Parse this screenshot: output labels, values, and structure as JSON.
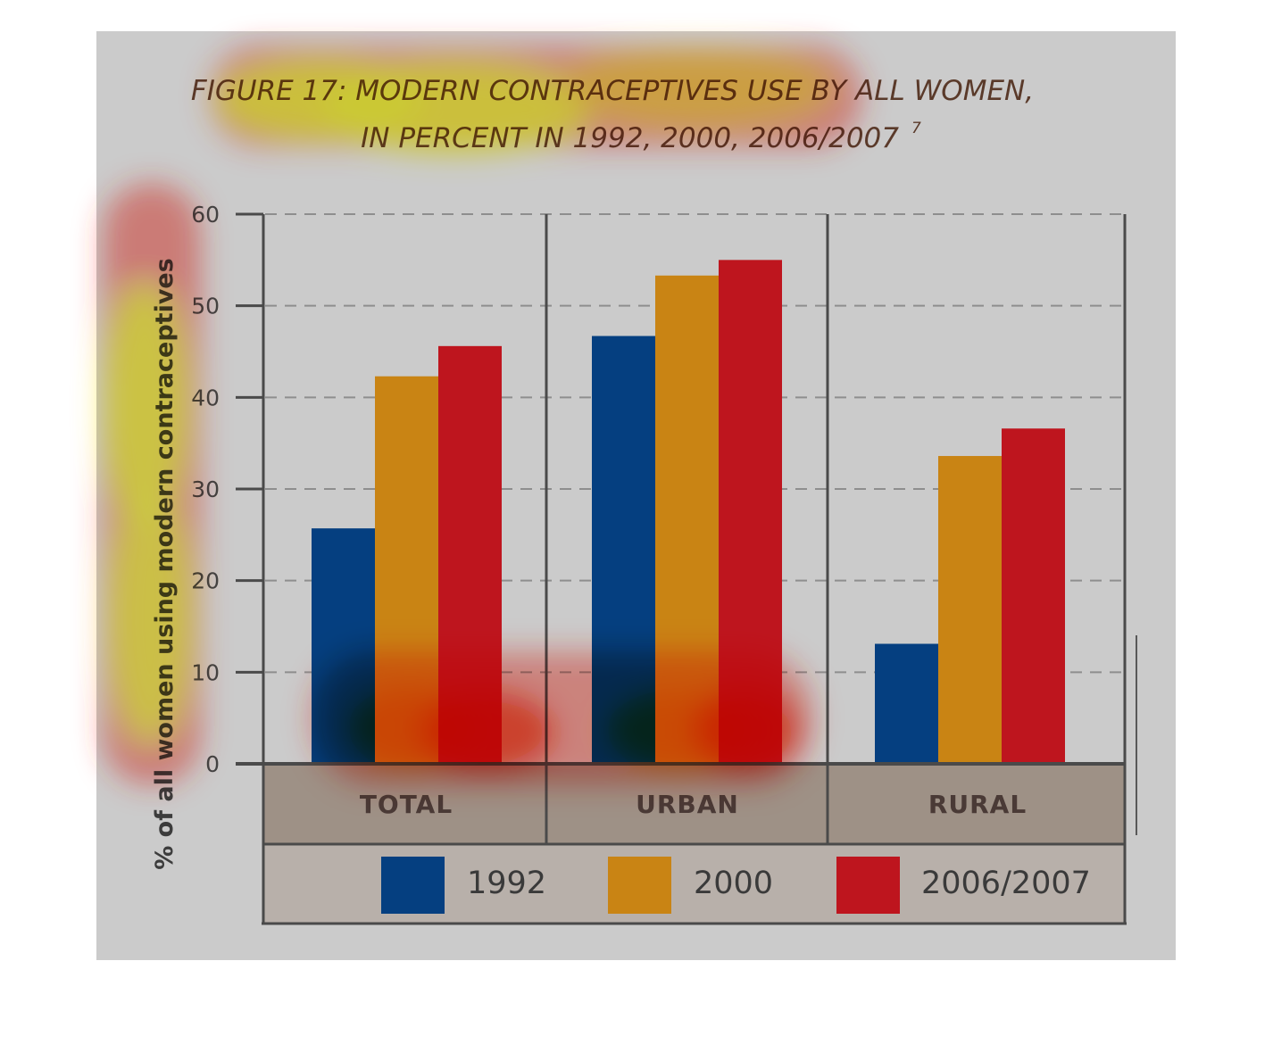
{
  "chart_data": {
    "type": "bar",
    "title_line1": "FIGURE 17: MODERN CONTRACEPTIVES USE BY ALL WOMEN,",
    "title_line2": "IN PERCENT IN 1992, 2000, 2006/2007",
    "title_footnote": "7",
    "ylabel": "% of all women using modern contraceptives",
    "ylim": [
      0,
      60
    ],
    "yticks": [
      "0",
      "10",
      "20",
      "30",
      "40",
      "50",
      "60"
    ],
    "ytick_values": [
      0,
      10,
      20,
      30,
      40,
      50,
      60
    ],
    "grid": true,
    "legend_position": "bottom",
    "categories": [
      "TOTAL",
      "URBAN",
      "RURAL"
    ],
    "series": [
      {
        "name": "1992",
        "values": [
          25.7,
          46.7,
          13.1
        ],
        "color": "#053f80"
      },
      {
        "name": "2000",
        "values": [
          42.3,
          53.3,
          33.6
        ],
        "color": "#c98414"
      },
      {
        "name": "2006/2007",
        "values": [
          45.6,
          55.0,
          36.6
        ],
        "color": "#be151e"
      }
    ]
  },
  "colors": {
    "background": "#cbcbcb",
    "category_band": "#9e9186",
    "legend_band": "#b8b0aa",
    "axis": "#4a4a4a",
    "heat_hot": "#ffff55",
    "heat_mid": "#ff2a00"
  }
}
